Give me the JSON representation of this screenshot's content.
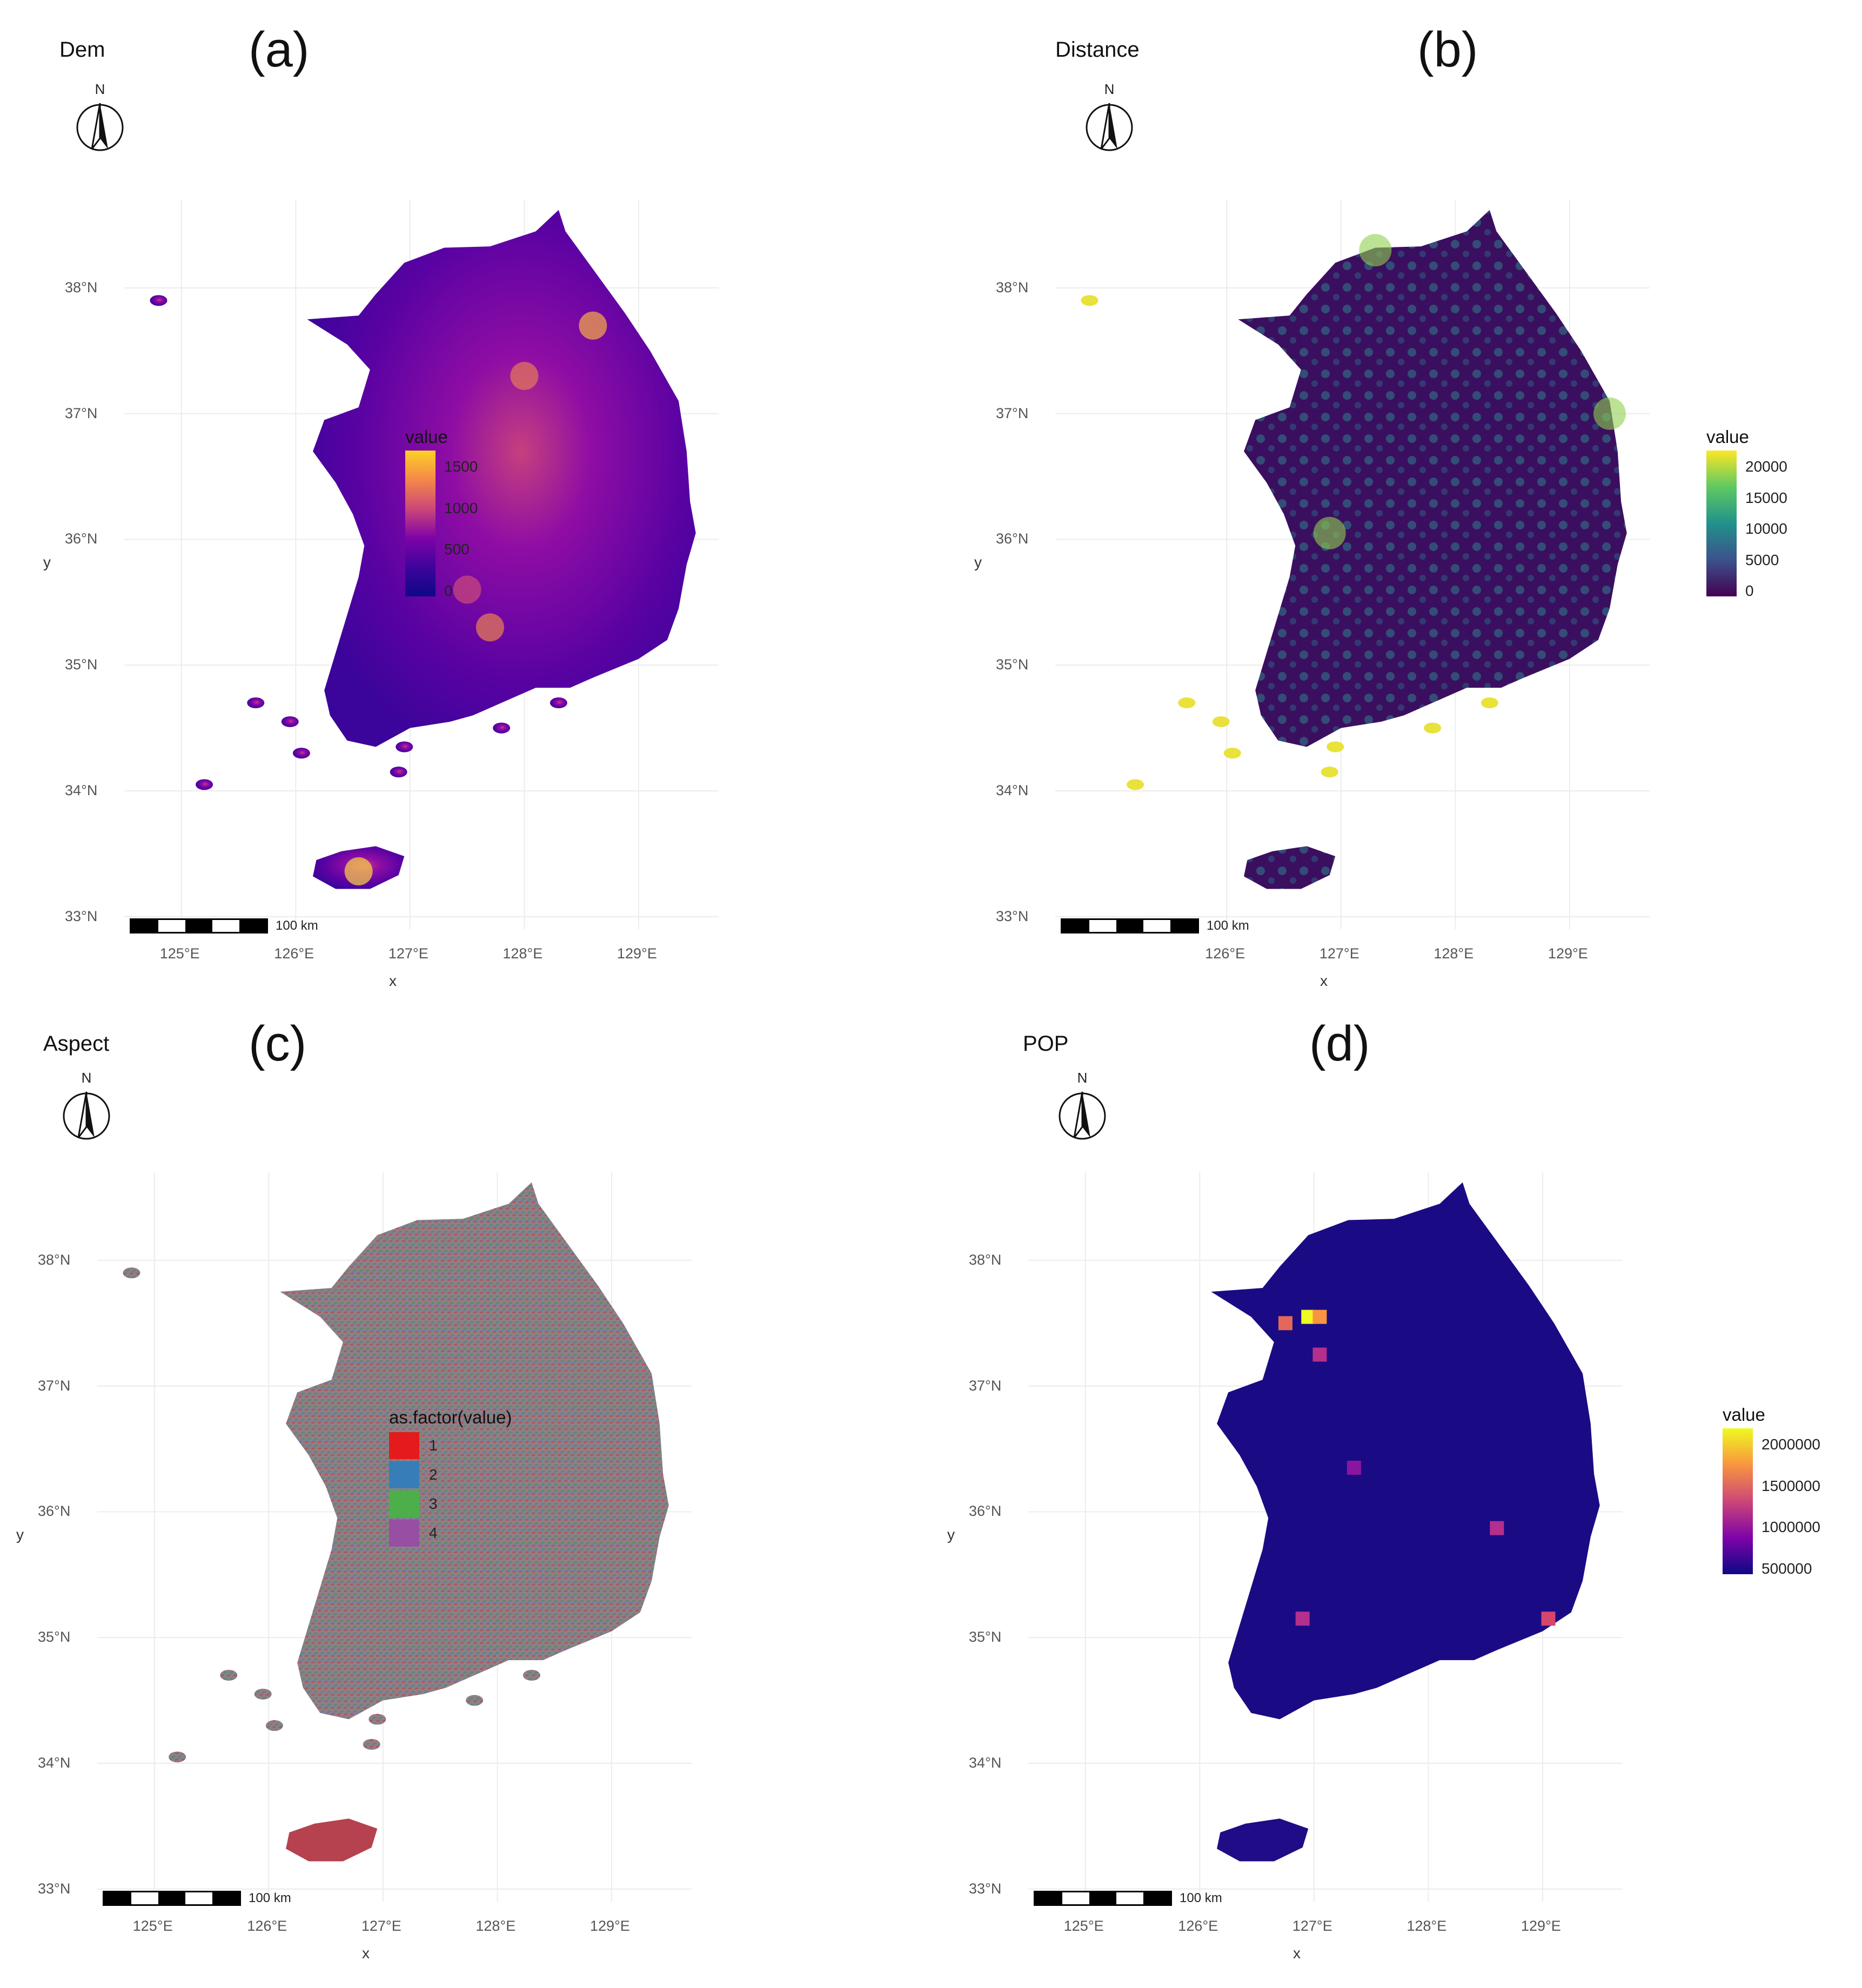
{
  "panels": [
    {
      "id": "a",
      "title": "Dem",
      "letter": "(a)",
      "xlabel": "x",
      "ylabel": "y",
      "lat_ticks": [
        "38°N",
        "37°N",
        "36°N",
        "35°N",
        "34°N",
        "33°N"
      ],
      "lon_ticks": [
        "125°E",
        "126°E",
        "127°E",
        "128°E",
        "129°E"
      ],
      "legend": {
        "type": "continuous",
        "title": "value",
        "labels": [
          "1500",
          "1000",
          "500",
          "0"
        ],
        "colors": [
          "#fcd225",
          "#f48849",
          "#cc4778",
          "#7e03a8",
          "#3e049c",
          "#0d0887"
        ]
      },
      "north_label": "N",
      "scale_label": "100 km"
    },
    {
      "id": "b",
      "title": "Distance",
      "letter": "(b)",
      "xlabel": "x",
      "ylabel": "y",
      "lat_ticks": [
        "38°N",
        "37°N",
        "36°N",
        "35°N",
        "34°N",
        "33°N"
      ],
      "lon_ticks": [
        "126°E",
        "127°E",
        "128°E",
        "129°E"
      ],
      "legend": {
        "type": "continuous",
        "title": "value",
        "labels": [
          "20000",
          "15000",
          "10000",
          "5000",
          "0"
        ],
        "colors": [
          "#fde725",
          "#5ec962",
          "#21918c",
          "#3b528b",
          "#440154"
        ]
      },
      "north_label": "N",
      "scale_label": "100 km"
    },
    {
      "id": "c",
      "title": "Aspect",
      "letter": "(c)",
      "xlabel": "x",
      "ylabel": "y",
      "lat_ticks": [
        "38°N",
        "37°N",
        "36°N",
        "35°N",
        "34°N",
        "33°N"
      ],
      "lon_ticks": [
        "125°E",
        "126°E",
        "127°E",
        "128°E",
        "129°E"
      ],
      "legend": {
        "type": "categorical",
        "title": "as.factor(value)",
        "items": [
          {
            "label": "1",
            "color": "#e41a1c"
          },
          {
            "label": "2",
            "color": "#377eb8"
          },
          {
            "label": "3",
            "color": "#4daf4a"
          },
          {
            "label": "4",
            "color": "#984ea3"
          }
        ]
      },
      "north_label": "N",
      "scale_label": "100 km"
    },
    {
      "id": "d",
      "title": "POP",
      "letter": "(d)",
      "xlabel": "x",
      "ylabel": "y",
      "lat_ticks": [
        "38°N",
        "37°N",
        "36°N",
        "35°N",
        "34°N",
        "33°N"
      ],
      "lon_ticks": [
        "125°E",
        "126°E",
        "127°E",
        "128°E",
        "129°E"
      ],
      "legend": {
        "type": "continuous",
        "title": "value",
        "labels": [
          "2000000",
          "1500000",
          "1000000",
          "500000"
        ],
        "colors": [
          "#f0f921",
          "#f89540",
          "#cc4778",
          "#7e03a8",
          "#0d0887"
        ]
      },
      "north_label": "N",
      "scale_label": "100 km"
    }
  ]
}
